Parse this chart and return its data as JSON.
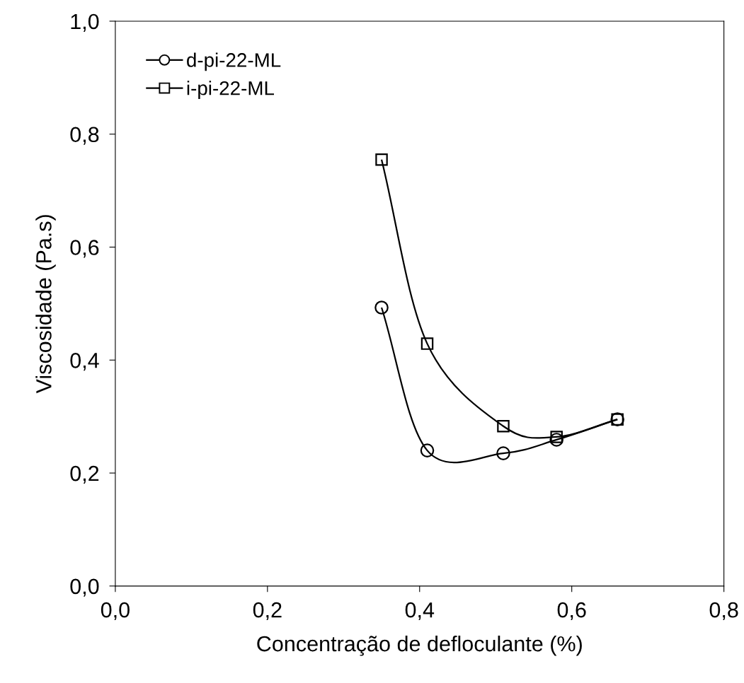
{
  "chart_data": {
    "type": "line",
    "xlabel": "Concentração de defloculante (%)",
    "ylabel": "Viscosidade (Pa.s)",
    "xlim": [
      0,
      0.8
    ],
    "ylim": [
      0,
      1.0
    ],
    "xticks": [
      {
        "value": 0,
        "label": "0,0"
      },
      {
        "value": 0.2,
        "label": "0,2"
      },
      {
        "value": 0.4,
        "label": "0,4"
      },
      {
        "value": 0.6,
        "label": "0,6"
      },
      {
        "value": 0.8,
        "label": "0,8"
      }
    ],
    "yticks": [
      {
        "value": 0,
        "label": "0,0"
      },
      {
        "value": 0.2,
        "label": "0,2"
      },
      {
        "value": 0.4,
        "label": "0,4"
      },
      {
        "value": 0.6,
        "label": "0,6"
      },
      {
        "value": 0.8,
        "label": "0,8"
      },
      {
        "value": 1.0,
        "label": "1,0"
      }
    ],
    "x": [
      0.35,
      0.41,
      0.51,
      0.58,
      0.66
    ],
    "series": [
      {
        "name": "d-pi-22-ML",
        "color": "#000000",
        "marker": "circle",
        "values": [
          0.493,
          0.24,
          0.235,
          0.259,
          0.295
        ]
      },
      {
        "name": "i-pi-22-ML",
        "color": "#000000",
        "marker": "square",
        "values": [
          0.755,
          0.429,
          0.283,
          0.264,
          0.295
        ]
      }
    ],
    "line_style": "solid",
    "grid": false,
    "legend": "top left"
  }
}
